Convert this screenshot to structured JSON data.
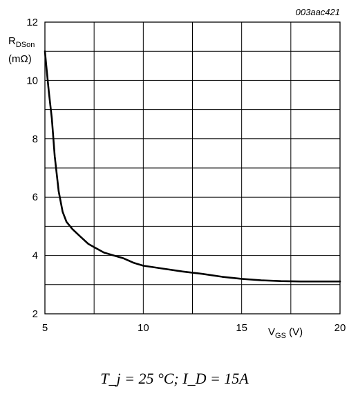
{
  "chart_data": {
    "type": "line",
    "reference": "003aac421",
    "ylabel": {
      "main": "R",
      "sub": "DSon",
      "unit": "(mΩ)"
    },
    "xlabel": {
      "main": "V",
      "sub": "GS",
      "unit": "(V)"
    },
    "xlim": [
      5,
      20
    ],
    "ylim": [
      2,
      12
    ],
    "x_ticks": [
      5,
      10,
      15,
      20
    ],
    "y_ticks": [
      2,
      4,
      6,
      8,
      10,
      12
    ],
    "grid": true,
    "series": [
      {
        "x": [
          5.0,
          5.1,
          5.2,
          5.35,
          5.5,
          5.7,
          5.9,
          6.1,
          6.4,
          6.8,
          7.2,
          7.6,
          8.0,
          8.5,
          9.0,
          9.5,
          10.0,
          11.0,
          12.0,
          13.0,
          14.0,
          15.0,
          16.0,
          17.0,
          18.0,
          19.0,
          20.0
        ],
        "y": [
          11.0,
          10.3,
          9.6,
          8.7,
          7.4,
          6.2,
          5.5,
          5.15,
          4.9,
          4.65,
          4.4,
          4.25,
          4.1,
          4.0,
          3.9,
          3.75,
          3.65,
          3.55,
          3.45,
          3.37,
          3.27,
          3.2,
          3.15,
          3.12,
          3.11,
          3.11,
          3.11
        ]
      }
    ],
    "condition": "T_j = 25 °C; I_D = 15A"
  }
}
